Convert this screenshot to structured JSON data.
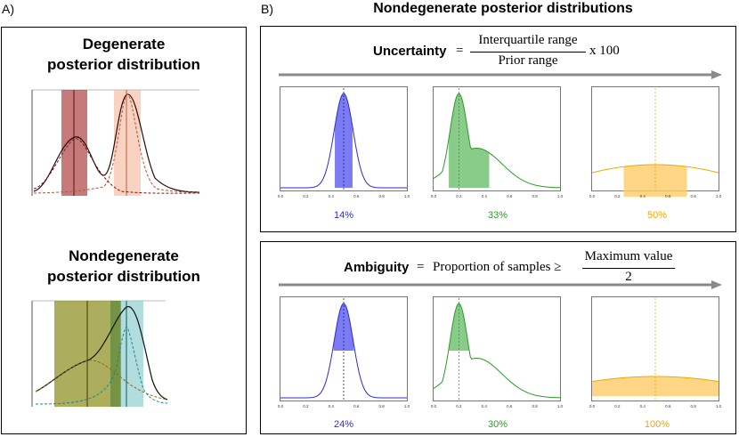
{
  "panel_a": {
    "label": "A)",
    "degenerate_title_line1": "Degenerate",
    "degenerate_title_line2": "posterior distribution",
    "nondegenerate_title_line1": "Nondegenerate",
    "nondegenerate_title_line2": "posterior distribution"
  },
  "panel_b": {
    "label": "B)",
    "title": "Nondegenerate posterior distributions",
    "uncertainty": {
      "word": "Uncertainty",
      "equals": "=",
      "numerator": "Interquartile range",
      "denominator": "Prior range",
      "times": "x 100",
      "values": [
        "14%",
        "33%",
        "50%"
      ],
      "colors": [
        "#2b2bd6",
        "#2a9a2a",
        "#f0a800"
      ]
    },
    "ambiguity": {
      "word": "Ambiguity",
      "equals": "=",
      "text": "Proportion of samples ≥",
      "numerator": "Maximum value",
      "denominator": "2",
      "values": [
        "24%",
        "30%",
        "100%"
      ],
      "colors": [
        "#2b2bd6",
        "#2a9a2a",
        "#f0a800"
      ]
    },
    "axis_ticks": [
      "0.0",
      "0.2",
      "0.4",
      "0.6",
      "0.8",
      "1.0"
    ]
  }
}
